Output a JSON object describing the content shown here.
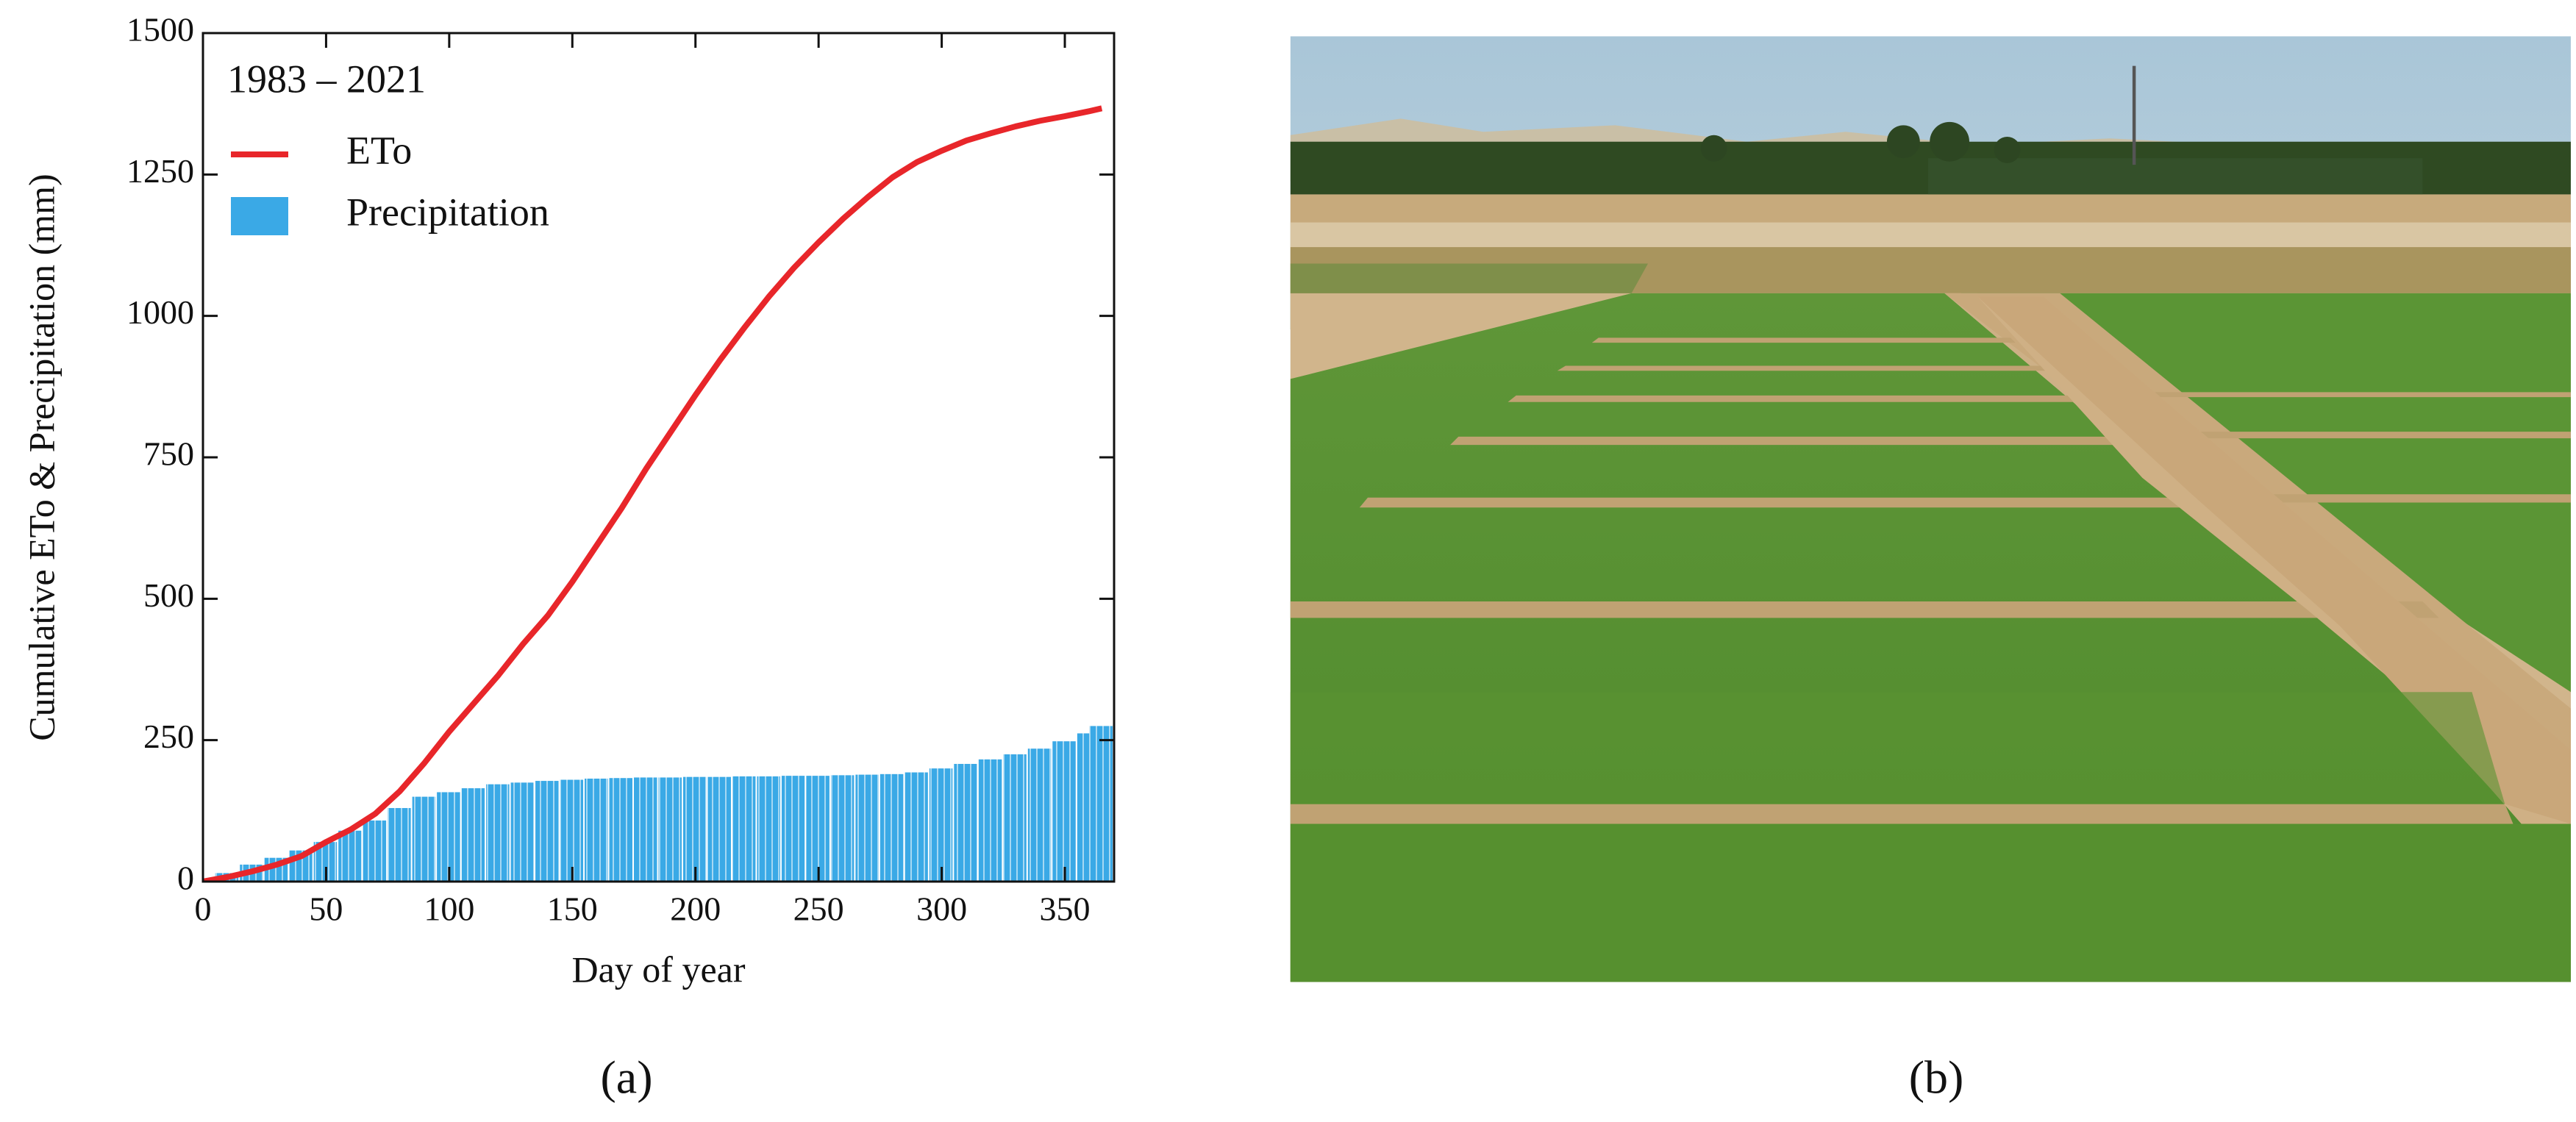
{
  "chart_data": {
    "type": "combo",
    "legend_title": "1983 – 2021",
    "xlabel": "Day of year",
    "ylabel": "Cumulative ETo & Precipitation (mm)",
    "panel_label": "(a)",
    "x": [
      0,
      10,
      20,
      30,
      40,
      50,
      60,
      70,
      80,
      90,
      100,
      110,
      120,
      130,
      140,
      150,
      160,
      170,
      180,
      190,
      200,
      210,
      220,
      230,
      240,
      250,
      260,
      270,
      280,
      290,
      300,
      310,
      320,
      330,
      340,
      350,
      360,
      365
    ],
    "series": [
      {
        "name": "ETo",
        "type": "line",
        "color": "#e8262a",
        "values": [
          0,
          8,
          18,
          30,
          45,
          70,
          92,
          120,
          160,
          210,
          265,
          315,
          365,
          420,
          470,
          530,
          595,
          660,
          730,
          795,
          860,
          922,
          980,
          1035,
          1085,
          1130,
          1172,
          1210,
          1245,
          1272,
          1292,
          1310,
          1323,
          1335,
          1345,
          1353,
          1362,
          1367
        ]
      },
      {
        "name": "Precipitation",
        "type": "bar",
        "color": "#3aa9e6",
        "values": [
          0,
          15,
          30,
          42,
          55,
          70,
          90,
          108,
          130,
          150,
          158,
          165,
          172,
          175,
          178,
          180,
          182,
          183,
          184,
          184,
          185,
          185,
          186,
          186,
          187,
          187,
          188,
          189,
          190,
          193,
          200,
          208,
          216,
          225,
          235,
          248,
          262,
          275
        ]
      }
    ],
    "xlim": [
      0,
      370
    ],
    "xticks": [
      0,
      50,
      100,
      150,
      200,
      250,
      300,
      350
    ],
    "ylim": [
      0,
      1500
    ],
    "yticks": [
      0,
      250,
      500,
      750,
      1000,
      1250,
      1500
    ],
    "legend": "upper-left"
  },
  "photo": {
    "panel_label": "(b)"
  }
}
